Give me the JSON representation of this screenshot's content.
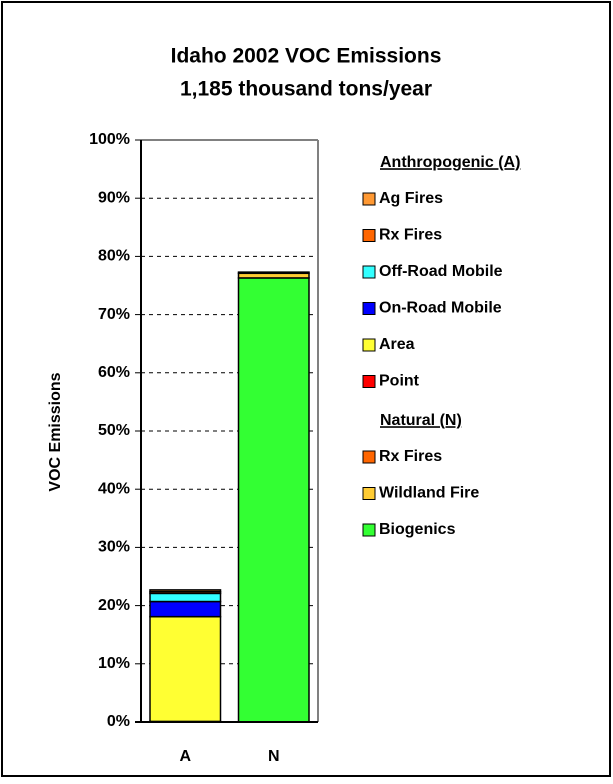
{
  "chart_data": {
    "type": "stacked_bar",
    "title": "Idaho 2002 VOC Emissions",
    "subtitle": "1,185 thousand tons/year",
    "y_label": "VOC Emissions",
    "categories": [
      "A",
      "N"
    ],
    "ylim": [
      0,
      100
    ],
    "yticks": [
      {
        "value": 0,
        "label": "0%"
      },
      {
        "value": 10,
        "label": "10%"
      },
      {
        "value": 20,
        "label": "20%"
      },
      {
        "value": 30,
        "label": "30%"
      },
      {
        "value": 40,
        "label": "40%"
      },
      {
        "value": 50,
        "label": "50%"
      },
      {
        "value": 60,
        "label": "60%"
      },
      {
        "value": 70,
        "label": "70%"
      },
      {
        "value": 80,
        "label": "80%"
      },
      {
        "value": 90,
        "label": "90%"
      },
      {
        "value": 100,
        "label": "100%"
      }
    ],
    "grid": true,
    "groups": [
      {
        "title": "Anthropogenic (A)",
        "series": [
          {
            "name": "Ag Fires",
            "color": "#ff9933",
            "values": [
              0.3,
              0
            ]
          },
          {
            "name": "Rx Fires",
            "color": "#ff6600",
            "values": [
              0.3,
              0
            ]
          },
          {
            "name": "Off-Road Mobile",
            "color": "#33ffff",
            "values": [
              1.4,
              0
            ]
          },
          {
            "name": "On-Road Mobile",
            "color": "#0000ff",
            "values": [
              2.6,
              0
            ]
          },
          {
            "name": "Area",
            "color": "#ffff33",
            "values": [
              18.0,
              0
            ]
          },
          {
            "name": "Point",
            "color": "#ff0000",
            "values": [
              0.1,
              0
            ]
          }
        ]
      },
      {
        "title": "Natural (N)",
        "series": [
          {
            "name": "Rx Fires",
            "color": "#ff6600",
            "values": [
              0,
              0.2
            ]
          },
          {
            "name": "Wildland Fire",
            "color": "#ffcc33",
            "values": [
              0,
              0.8
            ]
          },
          {
            "name": "Biogenics",
            "color": "#33ff33",
            "values": [
              0,
              76.3
            ]
          }
        ]
      }
    ]
  }
}
